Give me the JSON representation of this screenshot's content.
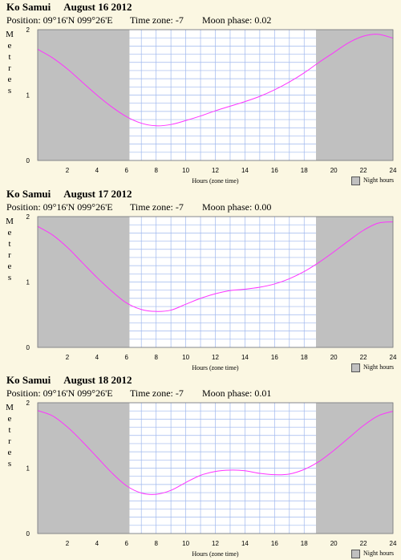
{
  "colors": {
    "background": "#fbf7e2",
    "night": "#c0c0c0",
    "day": "#ffffff",
    "grid": "#9fb8ee",
    "curve": "#ff33ff"
  },
  "chart_data": [
    {
      "type": "line",
      "location": "Ko Samui",
      "date": "August 16 2012",
      "position_label": "Position: 09°16'N 099°26'E",
      "timezone_label": "Time zone: -7",
      "moon_label": "Moon phase: 0.02",
      "ylabel": "Metres",
      "xlabel": "Hours (zone time)",
      "legend": "Night hours",
      "xlim": [
        0,
        24
      ],
      "ylim": [
        0,
        2
      ],
      "x_ticks": [
        2,
        4,
        6,
        8,
        10,
        12,
        14,
        16,
        18,
        20,
        22,
        24
      ],
      "y_ticks": [
        0,
        1,
        2
      ],
      "night_hours": [
        [
          0,
          6.2
        ],
        [
          18.8,
          24
        ]
      ],
      "series": [
        {
          "x": [
            0,
            1,
            2,
            3,
            4,
            5,
            6,
            7,
            8,
            9,
            10,
            11,
            12,
            13,
            14,
            15,
            16,
            17,
            18,
            19,
            20,
            21,
            22,
            23,
            24
          ],
          "values": [
            1.7,
            1.57,
            1.4,
            1.2,
            1.0,
            0.82,
            0.67,
            0.57,
            0.53,
            0.55,
            0.61,
            0.68,
            0.76,
            0.83,
            0.9,
            0.98,
            1.08,
            1.2,
            1.34,
            1.5,
            1.65,
            1.8,
            1.9,
            1.93,
            1.87
          ]
        }
      ]
    },
    {
      "type": "line",
      "location": "Ko Samui",
      "date": "August 17 2012",
      "position_label": "Position: 09°16'N 099°26'E",
      "timezone_label": "Time zone: -7",
      "moon_label": "Moon phase: 0.00",
      "ylabel": "Metres",
      "xlabel": "Hours (zone time)",
      "legend": "Night hours",
      "xlim": [
        0,
        24
      ],
      "ylim": [
        0,
        2
      ],
      "x_ticks": [
        2,
        4,
        6,
        8,
        10,
        12,
        14,
        16,
        18,
        20,
        22,
        24
      ],
      "y_ticks": [
        0,
        1,
        2
      ],
      "night_hours": [
        [
          0,
          6.2
        ],
        [
          18.8,
          24
        ]
      ],
      "series": [
        {
          "x": [
            0,
            1,
            2,
            3,
            4,
            5,
            6,
            7,
            8,
            9,
            10,
            11,
            12,
            13,
            14,
            15,
            16,
            17,
            18,
            19,
            20,
            21,
            22,
            23,
            24
          ],
          "values": [
            1.85,
            1.72,
            1.53,
            1.3,
            1.07,
            0.86,
            0.68,
            0.58,
            0.55,
            0.57,
            0.66,
            0.75,
            0.82,
            0.87,
            0.89,
            0.92,
            0.97,
            1.05,
            1.16,
            1.3,
            1.46,
            1.63,
            1.79,
            1.9,
            1.92
          ]
        }
      ]
    },
    {
      "type": "line",
      "location": "Ko Samui",
      "date": "August 18 2012",
      "position_label": "Position: 09°16'N 099°26'E",
      "timezone_label": "Time zone: -7",
      "moon_label": "Moon phase: 0.01",
      "ylabel": "Metres",
      "xlabel": "Hours (zone time)",
      "legend": "Night hours",
      "xlim": [
        0,
        24
      ],
      "ylim": [
        0,
        2
      ],
      "x_ticks": [
        2,
        4,
        6,
        8,
        10,
        12,
        14,
        16,
        18,
        20,
        22,
        24
      ],
      "y_ticks": [
        0,
        1,
        2
      ],
      "night_hours": [
        [
          0,
          6.2
        ],
        [
          18.8,
          24
        ]
      ],
      "series": [
        {
          "x": [
            0,
            1,
            2,
            3,
            4,
            5,
            6,
            7,
            8,
            9,
            10,
            11,
            12,
            13,
            14,
            15,
            16,
            17,
            18,
            19,
            20,
            21,
            22,
            23,
            24
          ],
          "values": [
            1.88,
            1.8,
            1.63,
            1.41,
            1.17,
            0.93,
            0.73,
            0.62,
            0.6,
            0.66,
            0.78,
            0.89,
            0.95,
            0.97,
            0.96,
            0.92,
            0.9,
            0.91,
            0.98,
            1.1,
            1.27,
            1.46,
            1.65,
            1.8,
            1.87
          ]
        }
      ]
    }
  ]
}
